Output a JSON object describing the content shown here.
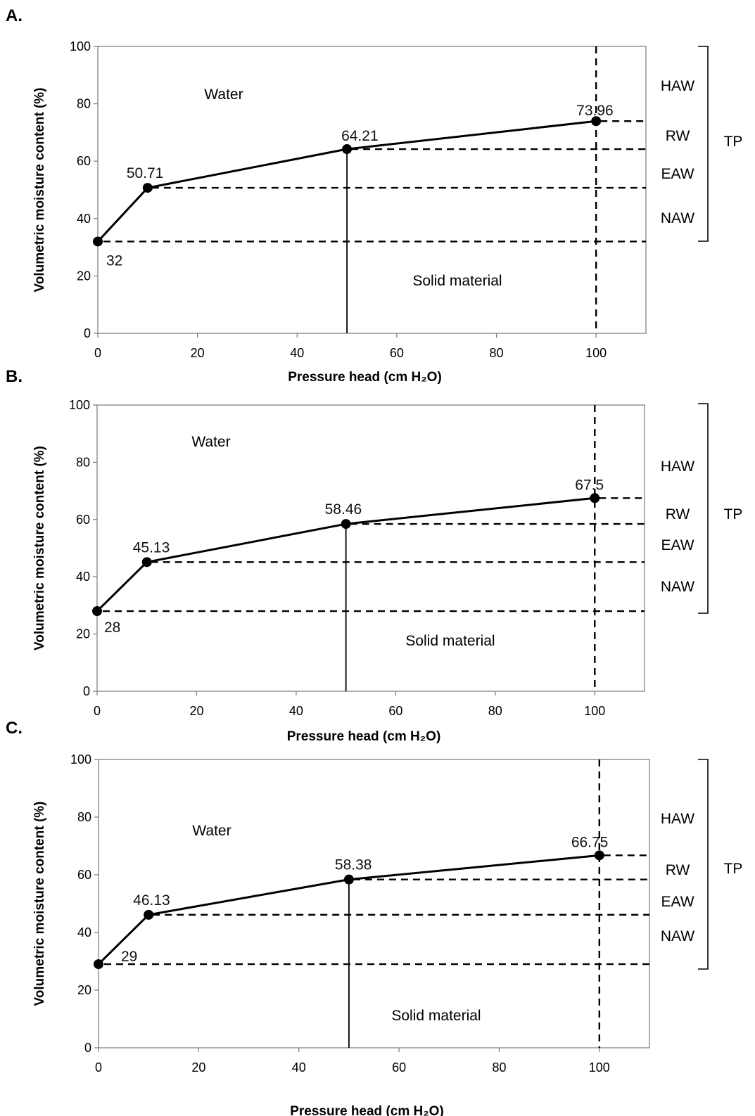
{
  "chart_data": [
    {
      "panel": "A.",
      "type": "line",
      "xlabel": "Pressure head (cm H₂O)",
      "ylabel": "Volumetric moisture content (%)",
      "xlim": [
        0,
        110
      ],
      "ylim": [
        0,
        100
      ],
      "xticks": [
        0,
        20,
        40,
        60,
        80,
        100
      ],
      "yticks": [
        0,
        20,
        40,
        60,
        80,
        100
      ],
      "grid": false,
      "x": [
        0,
        10,
        50,
        100
      ],
      "y": [
        32,
        50.71,
        64.21,
        73.96
      ],
      "point_labels": [
        "32",
        "50.71",
        "64.21",
        "73.96"
      ],
      "regions": {
        "upper": "Water",
        "lower": "Solid material"
      },
      "bracket": {
        "label": "TP",
        "segments": [
          "HAW",
          "RW",
          "EAW",
          "NAW"
        ]
      }
    },
    {
      "panel": "B.",
      "type": "line",
      "xlabel": "Pressure head (cm H₂O)",
      "ylabel": "Volumetric moisture content (%)",
      "xlim": [
        0,
        110
      ],
      "ylim": [
        0,
        100
      ],
      "xticks": [
        0,
        20,
        40,
        60,
        80,
        100
      ],
      "yticks": [
        0,
        20,
        40,
        60,
        80,
        100
      ],
      "grid": false,
      "x": [
        0,
        10,
        50,
        100
      ],
      "y": [
        28,
        45.13,
        58.46,
        67.5
      ],
      "point_labels": [
        "28",
        "45.13",
        "58.46",
        "67.5"
      ],
      "regions": {
        "upper": "Water",
        "lower": "Solid material"
      },
      "bracket": {
        "label": "TP",
        "segments": [
          "HAW",
          "RW",
          "EAW",
          "NAW"
        ]
      }
    },
    {
      "panel": "C.",
      "type": "line",
      "xlabel": "Pressure head (cm H₂O)",
      "ylabel": "Volumetric moisture content (%)",
      "xlim": [
        0,
        110
      ],
      "ylim": [
        0,
        100
      ],
      "xticks": [
        0,
        20,
        40,
        60,
        80,
        100
      ],
      "yticks": [
        0,
        20,
        40,
        60,
        80,
        100
      ],
      "grid": false,
      "x": [
        0,
        10,
        50,
        100
      ],
      "y": [
        29,
        46.13,
        58.38,
        66.75
      ],
      "point_labels": [
        "29",
        "46.13",
        "58.38",
        "66.75"
      ],
      "regions": {
        "upper": "Water",
        "lower": "Solid material"
      },
      "bracket": {
        "label": "TP",
        "segments": [
          "HAW",
          "RW",
          "EAW",
          "NAW"
        ]
      }
    }
  ]
}
